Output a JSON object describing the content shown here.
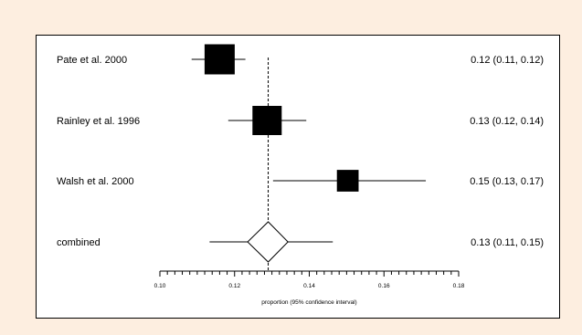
{
  "chart_data": {
    "type": "forest",
    "studies": [
      {
        "label": "Pate et al. 2000",
        "estimate": 0.116,
        "lower": 0.1085,
        "upper": 0.1229,
        "weight": 1.0,
        "ci_text": "0.12 (0.11, 0.12)"
      },
      {
        "label": "Rainley et al. 1996",
        "estimate": 0.1287,
        "lower": 0.1183,
        "upper": 0.1392,
        "weight": 0.97,
        "ci_text": "0.13 (0.12, 0.14)"
      },
      {
        "label": "Walsh et al. 2000",
        "estimate": 0.1503,
        "lower": 0.1303,
        "upper": 0.1712,
        "weight": 0.72,
        "ci_text": "0.15 (0.13, 0.17)"
      }
    ],
    "combined": {
      "label": "combined",
      "estimate": 0.129,
      "lower": 0.1133,
      "upper": 0.1463,
      "ci_low_diamond": 0.1235,
      "ci_high_diamond": 0.1343,
      "ci_text": "0.13 (0.11, 0.15)"
    },
    "reference_line": 0.129,
    "xlim": [
      0.1,
      0.18
    ],
    "x_ticks": [
      "0.10",
      "0.12",
      "0.14",
      "0.16",
      "0.18"
    ],
    "xlabel": "proportion (95% confidence interval)",
    "marker": "filled-square",
    "combined_marker": "open-diamond"
  },
  "colors": {
    "background": "#fdeee0",
    "panel": "#ffffff",
    "ink": "#000000"
  }
}
